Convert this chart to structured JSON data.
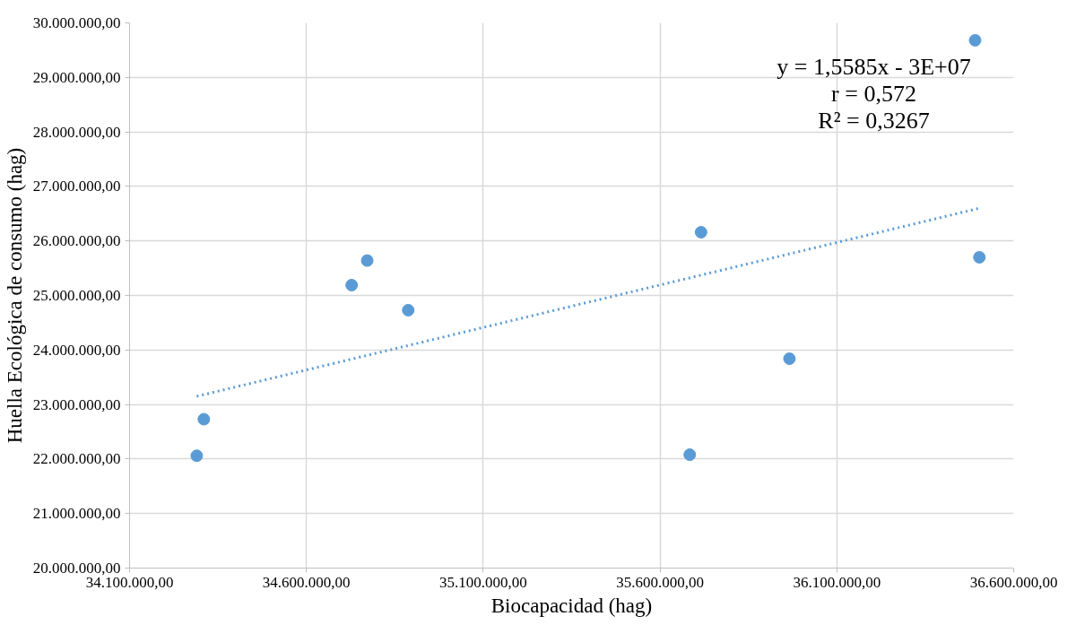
{
  "chart_data": {
    "type": "scatter",
    "xlabel": "Biocapacidad (hag)",
    "ylabel": "Huella Ecológica de consumo (hag)",
    "series": [
      {
        "color": "#5b9bd5",
        "x": [
          34290000,
          34310000,
          34728000,
          34772000,
          34888000,
          35684000,
          35716000,
          35966000,
          36491000,
          36503000
        ],
        "values": [
          22060000,
          22730000,
          25190000,
          25640000,
          24730000,
          22080000,
          26160000,
          23840000,
          29680000,
          25700000
        ]
      },
      {
        "type": "line",
        "color": "#5b9bd5",
        "line_style": "dotted",
        "marker": "none",
        "x": [
          34290000,
          36503000
        ],
        "values": [
          23150000,
          26600000
        ]
      }
    ],
    "xlim": [
      34100000,
      36600000
    ],
    "xticks": [
      {
        "value": 34100000,
        "label": "34.100.000,00"
      },
      {
        "value": 34600000,
        "label": "34.600.000,00"
      },
      {
        "value": 35100000,
        "label": "35.100.000,00"
      },
      {
        "value": 35600000,
        "label": "35.600.000,00"
      },
      {
        "value": 36100000,
        "label": "36.100.000,00"
      },
      {
        "value": 36600000,
        "label": "36.600.000,00"
      }
    ],
    "ylim": [
      20000000,
      30000000
    ],
    "yticks": [
      {
        "value": 20000000,
        "label": "20.000.000,00"
      },
      {
        "value": 21000000,
        "label": "21.000.000,00"
      },
      {
        "value": 22000000,
        "label": "22.000.000,00"
      },
      {
        "value": 23000000,
        "label": "23.000.000,00"
      },
      {
        "value": 24000000,
        "label": "24.000.000,00"
      },
      {
        "value": 25000000,
        "label": "25.000.000,00"
      },
      {
        "value": 26000000,
        "label": "26.000.000,00"
      },
      {
        "value": 27000000,
        "label": "27.000.000,00"
      },
      {
        "value": 28000000,
        "label": "28.000.000,00"
      },
      {
        "value": 29000000,
        "label": "29.000.000,00"
      },
      {
        "value": 30000000,
        "label": "30.000.000,00"
      }
    ],
    "annotations": [
      "y = 1,5585x - 3E+07",
      "r = 0,572",
      "R² = 0,3267"
    ],
    "grid": true,
    "marker": "circle"
  }
}
